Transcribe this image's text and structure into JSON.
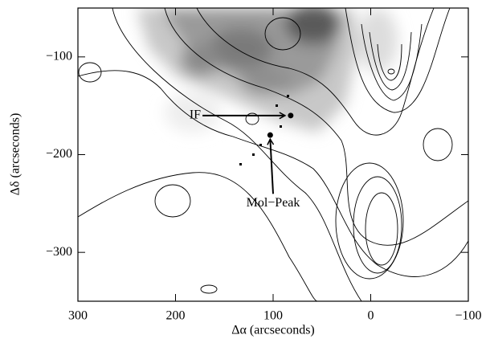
{
  "chart_data": {
    "type": "contour",
    "x_label": "Δα (arcseconds)",
    "y_label": "Δδ (arcseconds)",
    "xlim": [
      300,
      -100
    ],
    "ylim": [
      -350,
      -50
    ],
    "xticks": [
      300,
      200,
      100,
      0,
      {
        "value": -100,
        "label": "−100"
      }
    ],
    "yticks": [
      {
        "value": -100,
        "label": "−100"
      },
      {
        "value": -200,
        "label": "−200"
      },
      {
        "value": -300,
        "label": "−300"
      }
    ],
    "annotations": [
      {
        "text": "IF",
        "x": 174,
        "y": -160,
        "target_x": 82,
        "target_y": -160
      },
      {
        "text": "Mol−Peak",
        "x": 100,
        "y": -250,
        "target_x": 103,
        "target_y": -180
      }
    ]
  }
}
